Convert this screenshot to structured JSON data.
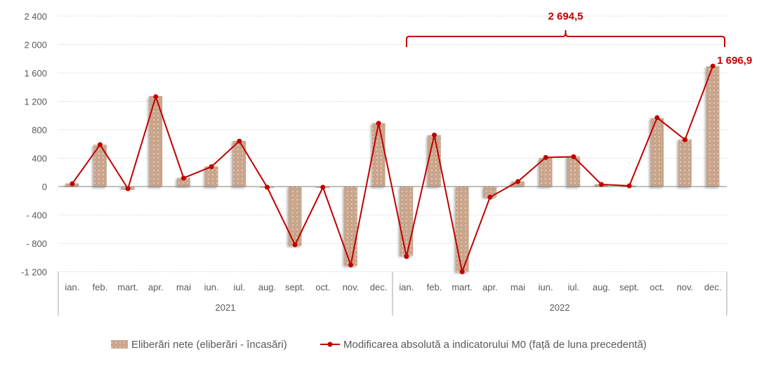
{
  "chart_data": {
    "type": "bar+line",
    "title": "",
    "ylim": [
      -1200,
      2400
    ],
    "yticks": [
      -1200,
      -800,
      -400,
      0,
      400,
      800,
      1200,
      1600,
      2000,
      2400
    ],
    "ytick_labels": [
      "-1 200",
      "- 800",
      "- 400",
      "0",
      "400",
      "800",
      "1 200",
      "1 600",
      "2 000",
      "2 400"
    ],
    "grid": true,
    "categories": [
      "ian.",
      "feb.",
      "mart.",
      "apr.",
      "mai",
      "iun.",
      "iul.",
      "aug.",
      "sept.",
      "oct.",
      "nov.",
      "dec.",
      "ian.",
      "feb.",
      "mart.",
      "apr.",
      "mai",
      "iun.",
      "iul.",
      "aug.",
      "sept.",
      "oct.",
      "nov.",
      "dec."
    ],
    "groups": [
      {
        "label": "2021",
        "count": 12
      },
      {
        "label": "2022",
        "count": 12
      }
    ],
    "series": [
      {
        "name": "Eliberări nete (eliberări - încasări)",
        "type": "bar",
        "color": "#c9a58c",
        "values": [
          40,
          585,
          -40,
          1270,
          120,
          280,
          640,
          -10,
          -830,
          -10,
          -1110,
          890,
          -970,
          720,
          -1200,
          -150,
          70,
          400,
          420,
          30,
          10,
          960,
          660,
          1690
        ]
      },
      {
        "name": "Modificarea absolută a indicatorului M0 (față de luna precedentă)",
        "type": "line",
        "color": "#c00000",
        "values": [
          40,
          590,
          -30,
          1265,
          120,
          280,
          640,
          -10,
          -820,
          -10,
          -1105,
          890,
          -985,
          725,
          -1200,
          -150,
          70,
          410,
          420,
          30,
          10,
          970,
          660,
          1696.9
        ]
      }
    ],
    "annotations": [
      {
        "text": "1 696,9",
        "target": "last point of line series"
      },
      {
        "text": "2 694,5",
        "target": "brace spanning 2022 ian. – dec."
      }
    ],
    "legend": "bottom"
  }
}
